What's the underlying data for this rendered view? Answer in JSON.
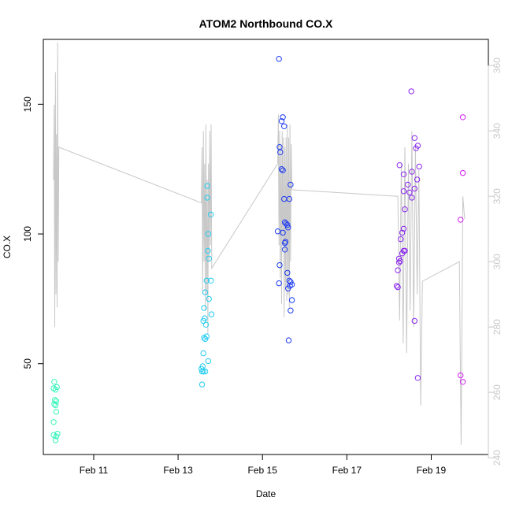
{
  "chart_data": {
    "type": "scatter",
    "title": "ATOM2 Northbound CO.X",
    "xlabel": "Date",
    "ylabel": "CO.X",
    "xlim": [
      "2015-02-09T19:20",
      "2015-02-20T08:30"
    ],
    "ylim": [
      15,
      175
    ],
    "y2lim": [
      241,
      368
    ],
    "x_ticks": [
      {
        "label": "Feb 11",
        "x": "2015-02-11T00:00"
      },
      {
        "label": "Feb 13",
        "x": "2015-02-13T00:00"
      },
      {
        "label": "Feb 15",
        "x": "2015-02-15T00:00"
      },
      {
        "label": "Feb 17",
        "x": "2015-02-17T00:00"
      },
      {
        "label": "Feb 19",
        "x": "2015-02-19T00:00"
      }
    ],
    "y_ticks": [
      50,
      100,
      150
    ],
    "y2_ticks": [
      240,
      260,
      280,
      300,
      320,
      340,
      360
    ],
    "grid": false,
    "legend": "none",
    "points": [
      {
        "x": "2015-02-10T01:34",
        "y": 43,
        "color": "#33f5b8"
      },
      {
        "x": "2015-02-10T01:12",
        "y": 40.5,
        "color": "#33f5b8"
      },
      {
        "x": "2015-02-10T02:18",
        "y": 40,
        "color": "#33f5b8"
      },
      {
        "x": "2015-02-10T03:02",
        "y": 41,
        "color": "#33f5b8"
      },
      {
        "x": "2015-02-10T01:56",
        "y": 36,
        "color": "#33f5b8"
      },
      {
        "x": "2015-02-10T02:40",
        "y": 35.5,
        "color": "#33f5b8"
      },
      {
        "x": "2015-02-10T01:34",
        "y": 34.5,
        "color": "#33f5b8"
      },
      {
        "x": "2015-02-10T02:18",
        "y": 34,
        "color": "#33f5b8"
      },
      {
        "x": "2015-02-10T02:40",
        "y": 31.5,
        "color": "#33f5b8"
      },
      {
        "x": "2015-02-10T01:12",
        "y": 27.5,
        "color": "#33f5b8"
      },
      {
        "x": "2015-02-10T01:12",
        "y": 22.5,
        "color": "#33f5b8"
      },
      {
        "x": "2015-02-10T02:40",
        "y": 22,
        "color": "#33f5b8"
      },
      {
        "x": "2015-02-10T03:24",
        "y": 23,
        "color": "#33f5b8"
      },
      {
        "x": "2015-02-10T02:18",
        "y": 20.5,
        "color": "#33f5b8"
      },
      {
        "x": "2015-02-13T13:38",
        "y": 47,
        "color": "#25ccf0"
      },
      {
        "x": "2015-02-13T13:16",
        "y": 48,
        "color": "#25ccf0"
      },
      {
        "x": "2015-02-13T14:00",
        "y": 49,
        "color": "#25ccf0"
      },
      {
        "x": "2015-02-13T14:22",
        "y": 47,
        "color": "#25ccf0"
      },
      {
        "x": "2015-02-13T15:28",
        "y": 47,
        "color": "#25ccf0"
      },
      {
        "x": "2015-02-13T13:38",
        "y": 42,
        "color": "#25ccf0"
      },
      {
        "x": "2015-02-13T14:22",
        "y": 54,
        "color": "#25ccf0"
      },
      {
        "x": "2015-02-13T17:10",
        "y": 51,
        "color": "#25ccf0"
      },
      {
        "x": "2015-02-13T14:44",
        "y": 60,
        "color": "#25ccf0"
      },
      {
        "x": "2015-02-13T15:28",
        "y": 59.5,
        "color": "#25ccf0"
      },
      {
        "x": "2015-02-13T16:12",
        "y": 60.5,
        "color": "#25ccf0"
      },
      {
        "x": "2015-02-13T15:50",
        "y": 65,
        "color": "#25ccf0"
      },
      {
        "x": "2015-02-13T14:22",
        "y": 66.5,
        "color": "#25ccf0"
      },
      {
        "x": "2015-02-13T15:06",
        "y": 67.5,
        "color": "#25ccf0"
      },
      {
        "x": "2015-02-13T14:44",
        "y": 71.5,
        "color": "#25ccf0"
      },
      {
        "x": "2015-02-13T19:00",
        "y": 69,
        "color": "#25ccf0"
      },
      {
        "x": "2015-02-13T17:32",
        "y": 75,
        "color": "#25ccf0"
      },
      {
        "x": "2015-02-13T15:28",
        "y": 77.5,
        "color": "#25ccf0"
      },
      {
        "x": "2015-02-13T16:12",
        "y": 82,
        "color": "#25ccf0"
      },
      {
        "x": "2015-02-13T18:38",
        "y": 82,
        "color": "#25ccf0"
      },
      {
        "x": "2015-02-13T17:32",
        "y": 90.5,
        "color": "#25ccf0"
      },
      {
        "x": "2015-02-13T16:56",
        "y": 93.5,
        "color": "#25ccf0"
      },
      {
        "x": "2015-02-13T17:10",
        "y": 100,
        "color": "#25ccf0"
      },
      {
        "x": "2015-02-13T18:38",
        "y": 107.5,
        "color": "#25ccf0"
      },
      {
        "x": "2015-02-13T16:34",
        "y": 114,
        "color": "#25ccf0"
      },
      {
        "x": "2015-02-13T16:34",
        "y": 118.5,
        "color": "#25ccf0"
      },
      {
        "x": "2015-02-15T09:24",
        "y": 167.5,
        "color": "#1f3cf2"
      },
      {
        "x": "2015-02-15T11:36",
        "y": 145,
        "color": "#1f3cf2"
      },
      {
        "x": "2015-02-15T10:52",
        "y": 143.5,
        "color": "#1f3cf2"
      },
      {
        "x": "2015-02-15T12:20",
        "y": 141.5,
        "color": "#1f3cf2"
      },
      {
        "x": "2015-02-15T09:46",
        "y": 133.5,
        "color": "#1f3cf2"
      },
      {
        "x": "2015-02-15T10:08",
        "y": 131.5,
        "color": "#1f3cf2"
      },
      {
        "x": "2015-02-15T10:52",
        "y": 125,
        "color": "#1f3cf2"
      },
      {
        "x": "2015-02-15T11:36",
        "y": 124.5,
        "color": "#1f3cf2"
      },
      {
        "x": "2015-02-15T16:00",
        "y": 119,
        "color": "#1f3cf2"
      },
      {
        "x": "2015-02-15T12:20",
        "y": 113.5,
        "color": "#1f3cf2"
      },
      {
        "x": "2015-02-15T15:16",
        "y": 113.5,
        "color": "#1f3cf2"
      },
      {
        "x": "2015-02-15T12:42",
        "y": 104.5,
        "color": "#1f3cf2"
      },
      {
        "x": "2015-02-15T13:26",
        "y": 104,
        "color": "#1f3cf2"
      },
      {
        "x": "2015-02-15T14:10",
        "y": 103.5,
        "color": "#1f3cf2"
      },
      {
        "x": "2015-02-15T14:32",
        "y": 102.5,
        "color": "#1f3cf2"
      },
      {
        "x": "2015-02-15T08:40",
        "y": 101,
        "color": "#1f3cf2"
      },
      {
        "x": "2015-02-15T11:36",
        "y": 100.5,
        "color": "#1f3cf2"
      },
      {
        "x": "2015-02-15T13:04",
        "y": 97,
        "color": "#1f3cf2"
      },
      {
        "x": "2015-02-15T12:42",
        "y": 96.5,
        "color": "#1f3cf2"
      },
      {
        "x": "2015-02-15T12:42",
        "y": 94,
        "color": "#1f3cf2"
      },
      {
        "x": "2015-02-15T09:46",
        "y": 88,
        "color": "#1f3cf2"
      },
      {
        "x": "2015-02-15T14:10",
        "y": 85,
        "color": "#1f3cf2"
      },
      {
        "x": "2015-02-15T09:24",
        "y": 81,
        "color": "#1f3cf2"
      },
      {
        "x": "2015-02-15T15:16",
        "y": 82,
        "color": "#1f3cf2"
      },
      {
        "x": "2015-02-15T16:00",
        "y": 81.5,
        "color": "#1f3cf2"
      },
      {
        "x": "2015-02-15T16:44",
        "y": 80.5,
        "color": "#1f3cf2"
      },
      {
        "x": "2015-02-15T15:38",
        "y": 80,
        "color": "#1f3cf2"
      },
      {
        "x": "2015-02-15T14:32",
        "y": 79,
        "color": "#1f3cf2"
      },
      {
        "x": "2015-02-15T16:44",
        "y": 74.5,
        "color": "#1f3cf2"
      },
      {
        "x": "2015-02-15T16:00",
        "y": 70.5,
        "color": "#1f3cf2"
      },
      {
        "x": "2015-02-15T14:54",
        "y": 59,
        "color": "#1f3cf2"
      },
      {
        "x": "2015-02-18T12:40",
        "y": 155,
        "color": "#8a28ee"
      },
      {
        "x": "2015-02-18T14:30",
        "y": 137,
        "color": "#8a28ee"
      },
      {
        "x": "2015-02-18T16:20",
        "y": 134,
        "color": "#8a28ee"
      },
      {
        "x": "2015-02-18T15:20",
        "y": 133,
        "color": "#8a28ee"
      },
      {
        "x": "2015-02-18T06:00",
        "y": 126.5,
        "color": "#8a28ee"
      },
      {
        "x": "2015-02-18T17:10",
        "y": 126,
        "color": "#8a28ee"
      },
      {
        "x": "2015-02-18T13:00",
        "y": 124,
        "color": "#8a28ee"
      },
      {
        "x": "2015-02-18T08:20",
        "y": 123,
        "color": "#8a28ee"
      },
      {
        "x": "2015-02-18T16:00",
        "y": 121,
        "color": "#8a28ee"
      },
      {
        "x": "2015-02-18T10:40",
        "y": 119,
        "color": "#8a28ee"
      },
      {
        "x": "2015-02-18T14:30",
        "y": 117.5,
        "color": "#8a28ee"
      },
      {
        "x": "2015-02-18T08:20",
        "y": 116.5,
        "color": "#8a28ee"
      },
      {
        "x": "2015-02-18T11:40",
        "y": 116,
        "color": "#8a28ee"
      },
      {
        "x": "2015-02-18T13:00",
        "y": 114,
        "color": "#8a28ee"
      },
      {
        "x": "2015-02-18T09:00",
        "y": 109.5,
        "color": "#8a28ee"
      },
      {
        "x": "2015-02-18T08:20",
        "y": 102,
        "color": "#8a28ee"
      },
      {
        "x": "2015-02-18T07:30",
        "y": 100.5,
        "color": "#8a28ee"
      },
      {
        "x": "2015-02-18T06:40",
        "y": 98,
        "color": "#8a28ee"
      },
      {
        "x": "2015-02-18T09:00",
        "y": 93.5,
        "color": "#8a28ee"
      },
      {
        "x": "2015-02-18T08:20",
        "y": 93.5,
        "color": "#8a28ee"
      },
      {
        "x": "2015-02-18T07:30",
        "y": 92.5,
        "color": "#8a28ee"
      },
      {
        "x": "2015-02-18T05:40",
        "y": 90.5,
        "color": "#8a28ee"
      },
      {
        "x": "2015-02-18T06:20",
        "y": 89.5,
        "color": "#8a28ee"
      },
      {
        "x": "2015-02-18T05:40",
        "y": 89,
        "color": "#8a28ee"
      },
      {
        "x": "2015-02-18T05:00",
        "y": 86,
        "color": "#8a28ee"
      },
      {
        "x": "2015-02-18T04:20",
        "y": 80,
        "color": "#8a28ee"
      },
      {
        "x": "2015-02-18T05:00",
        "y": 79.5,
        "color": "#8a28ee"
      },
      {
        "x": "2015-02-18T14:30",
        "y": 66.5,
        "color": "#8a28ee"
      },
      {
        "x": "2015-02-18T16:20",
        "y": 44.5,
        "color": "#8a28ee"
      },
      {
        "x": "2015-02-19T18:00",
        "y": 145,
        "color": "#d21ef0"
      },
      {
        "x": "2015-02-19T18:00",
        "y": 123.5,
        "color": "#d21ef0"
      },
      {
        "x": "2015-02-19T16:40",
        "y": 105.5,
        "color": "#d21ef0"
      },
      {
        "x": "2015-02-19T16:40",
        "y": 45.5,
        "color": "#d21ef0"
      },
      {
        "x": "2015-02-19T18:00",
        "y": 43,
        "color": "#d21ef0"
      }
    ],
    "line_series": {
      "axis": "right",
      "color": "#c8c8c8",
      "x": [
        "2015-02-10T01:10",
        "2015-02-10T01:30",
        "2015-02-10T01:50",
        "2015-02-10T02:10",
        "2015-02-10T02:30",
        "2015-02-10T02:50",
        "2015-02-10T03:10",
        "2015-02-10T03:30",
        "2015-02-10T03:50",
        "2015-02-10T04:10",
        "2015-02-13T13:16",
        "2015-02-13T13:38",
        "2015-02-13T14:00",
        "2015-02-13T14:22",
        "2015-02-13T14:44",
        "2015-02-13T15:06",
        "2015-02-13T15:28",
        "2015-02-13T15:50",
        "2015-02-13T16:12",
        "2015-02-13T16:34",
        "2015-02-13T16:56",
        "2015-02-13T17:18",
        "2015-02-13T17:40",
        "2015-02-13T18:02",
        "2015-02-13T18:24",
        "2015-02-13T18:46",
        "2015-02-13T19:08",
        "2015-02-15T08:40",
        "2015-02-15T09:02",
        "2015-02-15T09:24",
        "2015-02-15T09:46",
        "2015-02-15T10:08",
        "2015-02-15T10:30",
        "2015-02-15T10:52",
        "2015-02-15T11:14",
        "2015-02-15T11:36",
        "2015-02-15T11:58",
        "2015-02-15T12:20",
        "2015-02-15T12:42",
        "2015-02-15T13:04",
        "2015-02-15T13:26",
        "2015-02-15T13:48",
        "2015-02-15T14:10",
        "2015-02-15T14:32",
        "2015-02-15T14:54",
        "2015-02-15T15:16",
        "2015-02-15T15:38",
        "2015-02-15T16:00",
        "2015-02-15T16:22",
        "2015-02-15T16:44",
        "2015-02-18T05:00",
        "2015-02-18T06:00",
        "2015-02-18T07:00",
        "2015-02-18T08:00",
        "2015-02-18T09:00",
        "2015-02-18T10:00",
        "2015-02-18T11:00",
        "2015-02-18T12:00",
        "2015-02-18T13:00",
        "2015-02-18T14:00",
        "2015-02-18T15:00",
        "2015-02-18T16:00",
        "2015-02-18T17:00",
        "2015-02-18T18:00",
        "2015-02-18T19:00",
        "2015-02-19T16:00",
        "2015-02-19T17:00",
        "2015-02-19T18:00",
        "2015-02-19T19:00"
      ],
      "y": [
        325,
        348,
        280,
        358,
        290,
        339,
        286,
        367,
        300,
        335,
        318,
        335,
        290,
        340,
        300,
        330,
        285,
        342,
        290,
        325,
        278,
        330,
        300,
        340,
        305,
        342,
        298,
        330,
        345,
        305,
        340,
        295,
        336,
        287,
        340,
        305,
        338,
        283,
        335,
        292,
        338,
        288,
        342,
        290,
        338,
        286,
        342,
        300,
        336,
        322,
        320,
        282,
        330,
        275,
        335,
        272,
        330,
        285,
        340,
        280,
        335,
        290,
        328,
        256,
        294,
        300,
        244,
        320,
        313
      ]
    }
  }
}
